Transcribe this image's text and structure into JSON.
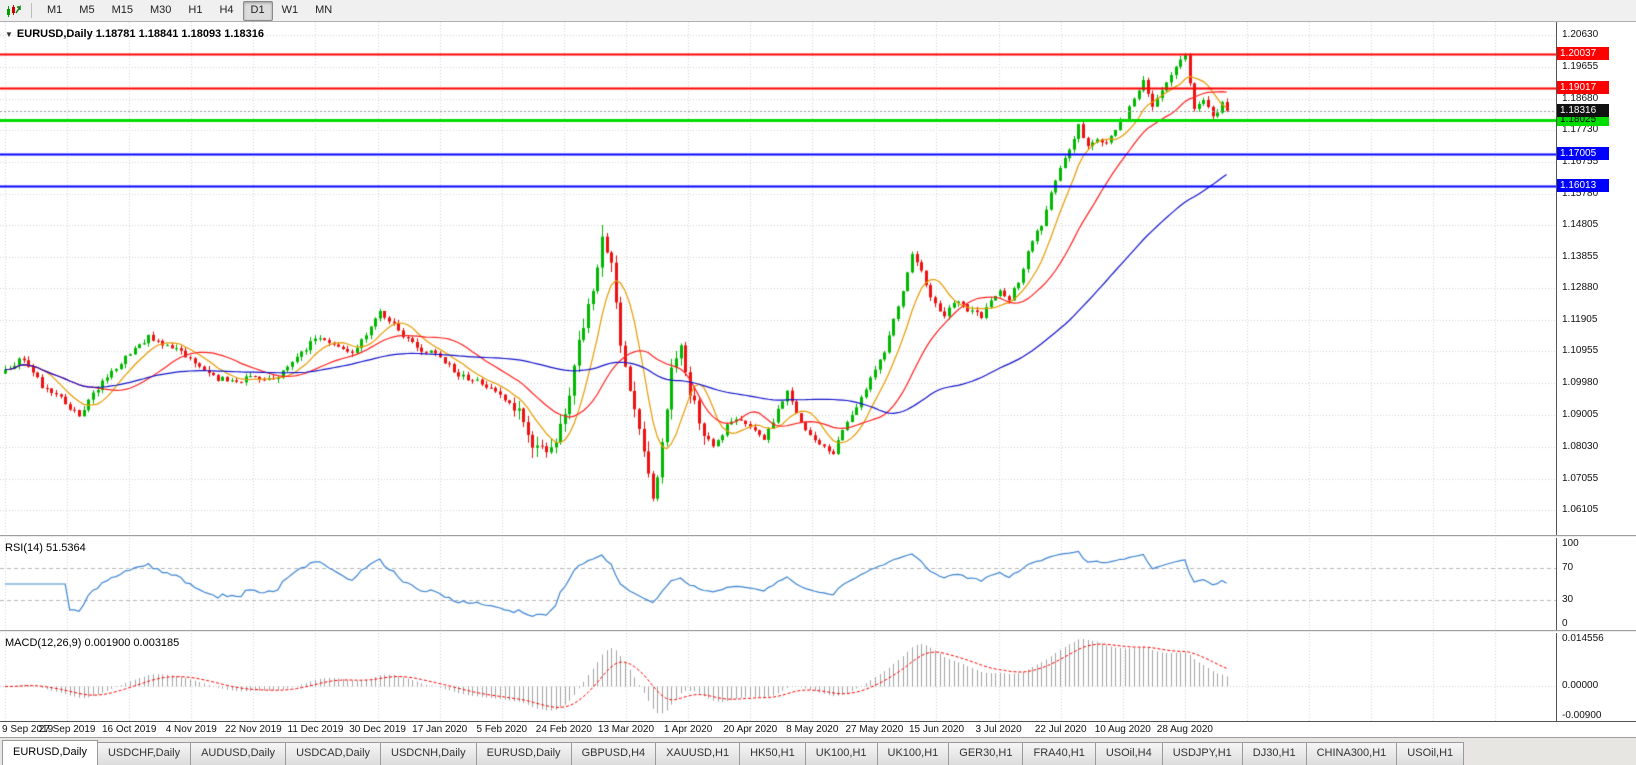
{
  "toolbar": {
    "timeframes": [
      "M1",
      "M5",
      "M15",
      "M30",
      "H1",
      "H4",
      "D1",
      "W1",
      "MN"
    ],
    "active_timeframe": "D1",
    "icons": {
      "chart_icon": "candlestick-chart"
    }
  },
  "chart": {
    "dropdown_icon": "▼",
    "title": "EURUSD,Daily 1.18781 1.18841 1.18093 1.18316",
    "price_axis_ticks": [
      "1.20630",
      "1.19655",
      "1.18680",
      "1.17730",
      "1.16755",
      "1.15780",
      "1.14805",
      "1.13855",
      "1.12880",
      "1.11905",
      "1.10955",
      "1.09980",
      "1.09005",
      "1.08030",
      "1.07055",
      "1.06105"
    ],
    "levels": [
      {
        "label": "1.20037",
        "value": 1.20037,
        "color": "#ff0000",
        "text_color": "#ffffff",
        "width": 2
      },
      {
        "label": "1.19017",
        "value": 1.19017,
        "color": "#ff0000",
        "text_color": "#ffffff",
        "width": 2
      },
      {
        "label": "1.18025",
        "value": 1.18025,
        "color": "#00dd00",
        "text_color": "#000000",
        "width": 3
      },
      {
        "label": "1.17005",
        "value": 1.17005,
        "color": "#0000ff",
        "text_color": "#ffffff",
        "width": 2
      },
      {
        "label": "1.16013",
        "value": 1.16013,
        "color": "#0000ff",
        "text_color": "#ffffff",
        "width": 2
      }
    ],
    "current_price": {
      "label": "1.18316",
      "value": 1.18316,
      "bg": "#111111",
      "text_color": "#ffffff"
    },
    "dates": [
      "9 Sep 2019",
      "27 Sep 2019",
      "16 Oct 2019",
      "4 Nov 2019",
      "22 Nov 2019",
      "11 Dec 2019",
      "30 Dec 2019",
      "17 Jan 2020",
      "5 Feb 2020",
      "24 Feb 2020",
      "13 Mar 2020",
      "1 Apr 2020",
      "20 Apr 2020",
      "8 May 2020",
      "27 May 2020",
      "15 Jun 2020",
      "3 Jul 2020",
      "22 Jul 2020",
      "10 Aug 2020",
      "28 Aug 2020"
    ]
  },
  "rsi": {
    "label": "RSI(14) 51.5364",
    "value": 51.5364,
    "axis_labels": [
      "100",
      "70",
      "30",
      "0"
    ],
    "level_lines": [
      70,
      30
    ],
    "line_color": "#3f86d2"
  },
  "macd": {
    "label": "MACD(12,26,9) 0.001900 0.003185",
    "values": [
      "0.001900",
      "0.003185"
    ],
    "axis_labels": [
      "0.014556",
      "0.00000",
      "-0.00900"
    ],
    "axis_max": 0.014556,
    "axis_min": -0.009,
    "histogram_color": "#a4a4a4",
    "signal_color": "#ff0000"
  },
  "tabs": {
    "active_index": 0,
    "items": [
      "EURUSD,Daily",
      "USDCHF,Daily",
      "AUDUSD,Daily",
      "USDCAD,Daily",
      "USDCNH,Daily",
      "EURUSD,Daily",
      "GBPUSD,H4",
      "XAUUSD,H1",
      "HK50,H1",
      "UK100,H1",
      "UK100,H1",
      "GER30,H1",
      "FRA40,H1",
      "USOil,H4",
      "USDJPY,H1",
      "DJ30,H1",
      "CHINA300,H1",
      "USOil,H1"
    ]
  },
  "chart_data": {
    "type": "candlestick",
    "symbol": "EURUSD",
    "timeframe": "Daily",
    "last_ohlc": {
      "open": 1.18781,
      "high": 1.18841,
      "low": 1.18093,
      "close": 1.18316
    },
    "y_top": 1.2063,
    "y_bottom": 1.06105,
    "num_candles": 265,
    "up_color": "#00b800",
    "down_color": "#ee1111",
    "close_anchors": [
      [
        0,
        1.104
      ],
      [
        4,
        1.1075
      ],
      [
        8,
        1.099
      ],
      [
        13,
        1.094
      ],
      [
        16,
        1.0895
      ],
      [
        20,
        1.0985
      ],
      [
        26,
        1.1075
      ],
      [
        31,
        1.114
      ],
      [
        36,
        1.1105
      ],
      [
        40,
        1.1075
      ],
      [
        45,
        1.1015
      ],
      [
        50,
        1.1005
      ],
      [
        54,
        1.102
      ],
      [
        58,
        1.1005
      ],
      [
        63,
        1.1075
      ],
      [
        67,
        1.1135
      ],
      [
        71,
        1.1115
      ],
      [
        75,
        1.1085
      ],
      [
        79,
        1.1175
      ],
      [
        81,
        1.1215
      ],
      [
        85,
        1.116
      ],
      [
        90,
        1.1095
      ],
      [
        93,
        1.109
      ],
      [
        98,
        1.1025
      ],
      [
        103,
        1.1
      ],
      [
        106,
        1.0975
      ],
      [
        111,
        1.0905
      ],
      [
        115,
        1.079
      ],
      [
        118,
        1.0805
      ],
      [
        121,
        1.0885
      ],
      [
        124,
        1.1135
      ],
      [
        127,
        1.1285
      ],
      [
        129,
        1.144
      ],
      [
        131,
        1.137
      ],
      [
        133,
        1.1105
      ],
      [
        136,
        1.092
      ],
      [
        138,
        1.0775
      ],
      [
        140,
        1.065
      ],
      [
        142,
        1.08
      ],
      [
        144,
        1.104
      ],
      [
        146,
        1.1095
      ],
      [
        148,
        1.0965
      ],
      [
        151,
        1.0855
      ],
      [
        153,
        1.08
      ],
      [
        156,
        1.087
      ],
      [
        159,
        1.0885
      ],
      [
        161,
        1.0865
      ],
      [
        164,
        1.0825
      ],
      [
        167,
        1.0915
      ],
      [
        169,
        1.0975
      ],
      [
        171,
        1.0905
      ],
      [
        174,
        1.0835
      ],
      [
        177,
        1.08
      ],
      [
        179,
        1.0785
      ],
      [
        182,
        1.088
      ],
      [
        185,
        1.095
      ],
      [
        187,
        1.1015
      ],
      [
        190,
        1.11
      ],
      [
        193,
        1.1235
      ],
      [
        196,
        1.1385
      ],
      [
        198,
        1.1345
      ],
      [
        200,
        1.1255
      ],
      [
        203,
        1.1205
      ],
      [
        205,
        1.125
      ],
      [
        208,
        1.1225
      ],
      [
        211,
        1.12
      ],
      [
        213,
        1.125
      ],
      [
        215,
        1.128
      ],
      [
        217,
        1.1255
      ],
      [
        219,
        1.131
      ],
      [
        222,
        1.144
      ],
      [
        224,
        1.148
      ],
      [
        226,
        1.158
      ],
      [
        228,
        1.165
      ],
      [
        230,
        1.172
      ],
      [
        232,
        1.1785
      ],
      [
        234,
        1.172
      ],
      [
        236,
        1.1745
      ],
      [
        238,
        1.1735
      ],
      [
        240,
        1.178
      ],
      [
        242,
        1.181
      ],
      [
        244,
        1.187
      ],
      [
        246,
        1.193
      ],
      [
        248,
        1.185
      ],
      [
        250,
        1.19
      ],
      [
        252,
        1.1935
      ],
      [
        254,
        1.1995
      ],
      [
        255,
        1.2
      ],
      [
        256,
        1.1915
      ],
      [
        257,
        1.184
      ],
      [
        259,
        1.1865
      ],
      [
        261,
        1.181
      ],
      [
        263,
        1.1855
      ],
      [
        264,
        1.18316
      ]
    ],
    "notable_extremes": [
      {
        "index": 255,
        "high": 1.2004
      },
      {
        "index": 140,
        "low": 1.0637
      },
      {
        "index": 129,
        "high": 1.1482
      }
    ],
    "moving_averages": [
      {
        "name": "fast",
        "period": 8,
        "color": "#e69b00"
      },
      {
        "name": "medium",
        "period": 20,
        "color": "#ff2222"
      },
      {
        "name": "slow",
        "period": 60,
        "color": "#1414cc"
      }
    ],
    "grid": true,
    "legend_position": "none"
  }
}
